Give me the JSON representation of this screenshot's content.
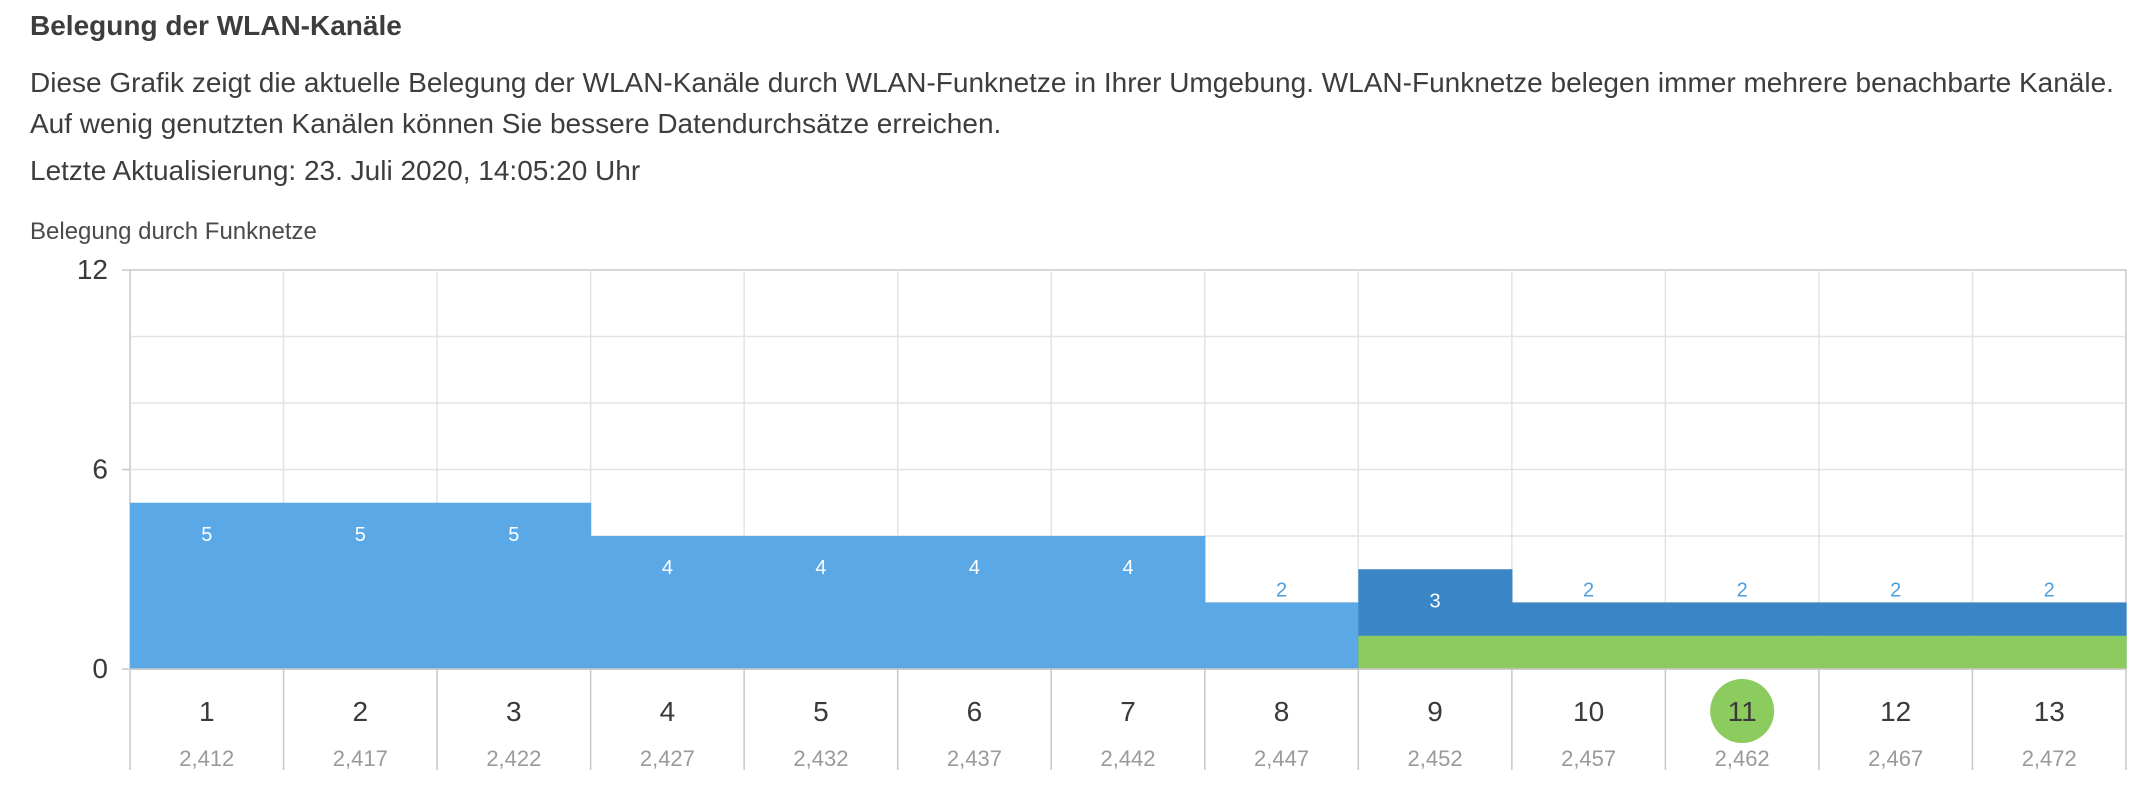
{
  "header": {
    "title": "Belegung der WLAN-Kanäle",
    "description": "Diese Grafik zeigt die aktuelle Belegung der WLAN-Kanäle durch WLAN-Funknetze in Ihrer Umgebung. WLAN-Funknetze belegen immer mehrere benachbarte Kanäle. Auf wenig genutzten Kanälen können Sie bessere Datendurchsätze erreichen.",
    "last_update": "Letzte Aktualisierung: 23. Juli 2020, 14:05:20 Uhr"
  },
  "colors": {
    "foreign": "#5aa8e6",
    "foreign_dark": "#3a85c5",
    "own": "#8ccb5e",
    "grid": "#e3e3e3",
    "axis": "#c8c8c8",
    "label_light": "#ffffff",
    "label_blue": "#4a9fe0"
  },
  "chart_data": {
    "type": "bar",
    "title": "Belegung durch Funknetze",
    "ylim": [
      0,
      12
    ],
    "yticks": [
      "0",
      "6",
      "12"
    ],
    "categories": [
      "1",
      "2",
      "3",
      "4",
      "5",
      "6",
      "7",
      "8",
      "9",
      "10",
      "11",
      "12",
      "13"
    ],
    "frequencies": [
      "2,412",
      "2,417",
      "2,422",
      "2,427",
      "2,432",
      "2,437",
      "2,442",
      "2,447",
      "2,452",
      "2,457",
      "2,462",
      "2,467",
      "2,472"
    ],
    "values": [
      5,
      5,
      5,
      4,
      4,
      4,
      4,
      2,
      3,
      2,
      2,
      2,
      2
    ],
    "own_network": {
      "channels": [
        "9",
        "10",
        "11",
        "12",
        "13"
      ],
      "values": [
        1,
        1,
        1,
        1,
        1
      ],
      "primary_channel": "11"
    },
    "grid": true
  }
}
